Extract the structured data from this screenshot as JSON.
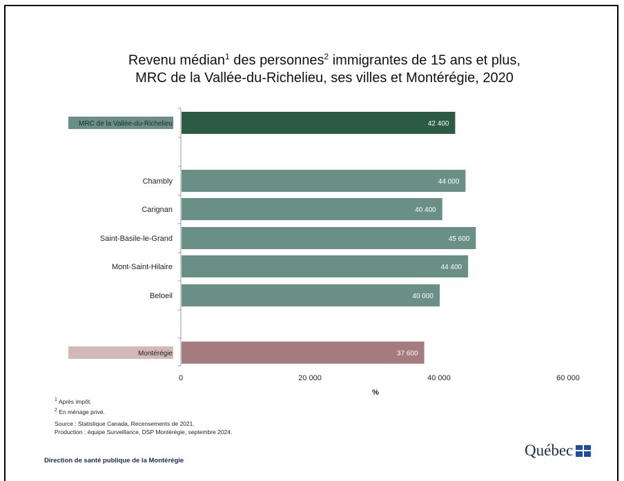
{
  "title": {
    "line1_a": "Revenu médian",
    "line1_sup1": "1",
    "line1_b": " des personnes",
    "line1_sup2": "2",
    "line1_c": " immigrantes de 15 ans et plus,",
    "line2": "MRC de la Vallée-du-Richelieu, ses villes et Montérégie, 2020"
  },
  "chart_data": {
    "type": "bar",
    "orientation": "horizontal",
    "categories": [
      "MRC de la Vallée-du-Richelieu",
      "Chambly",
      "Carignan",
      "Saint-Basile-le-Grand",
      "Mont-Saint-Hilaire",
      "Beloeil",
      "Montérégie"
    ],
    "values": [
      42400,
      44000,
      40400,
      45600,
      44400,
      40000,
      37600
    ],
    "data_labels": [
      "42 400",
      "44 000",
      "40 400",
      "45 600",
      "44 400",
      "40 000",
      "37 600"
    ],
    "bar_colors": [
      "#2d5a43",
      "#6a8f87",
      "#6a8f87",
      "#6a8f87",
      "#6a8f87",
      "#6a8f87",
      "#a57b7f"
    ],
    "label_highlight": {
      "MRC de la Vallée-du-Richelieu": "#6a8f87",
      "Montérégie": "#d3b8ba"
    },
    "xlim": [
      0,
      60000
    ],
    "xticks": [
      0,
      20000,
      40000,
      60000
    ],
    "xtick_labels": [
      "0",
      "20 000",
      "40 000",
      "60 000"
    ],
    "xlabel": "%",
    "ylabel": "",
    "grid": false,
    "legend": "none"
  },
  "footnotes": {
    "note1_sup": "1",
    "note1": " Après impôt.",
    "note2_sup": "2",
    "note2": " En ménage privé.",
    "source": "Source : Statistique Canada, Recensements de 2021.",
    "production": "Production : équipe Surveillance, DSP Montérégie, septembre 2024."
  },
  "footer": {
    "organization": "Direction de santé publique de la Montérégie",
    "logo_text": "Québec"
  }
}
